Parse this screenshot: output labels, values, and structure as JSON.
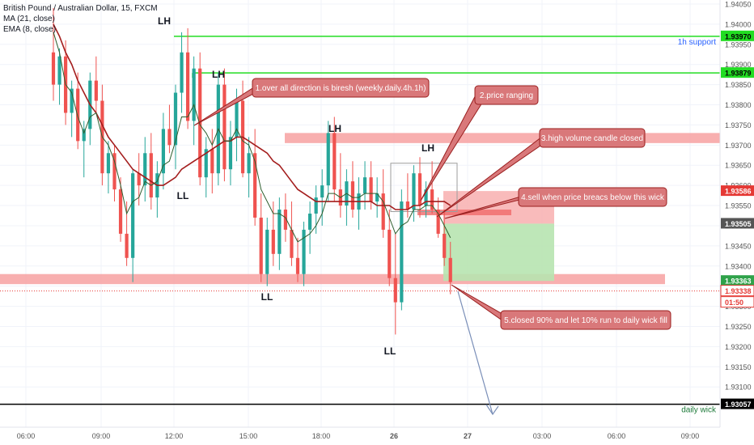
{
  "legend": {
    "symbol": "British Pound / Australian Dollar, 15, FXCM",
    "ma": "MA (21, close)",
    "ema": "EMA (8, close)"
  },
  "colors": {
    "up": "#26a69a",
    "down": "#ef5350",
    "ma": "#a31d1d",
    "ema": "#2e5e2e",
    "support_line": "#22dd22",
    "zone": "#f7a1a1",
    "note_fill": "#d9787a",
    "note_border": "#9a1f1f",
    "target_box": "#b7e4b0",
    "stop_box": "#f8b4b4",
    "arrow": "#7a8fb8"
  },
  "chart_data": {
    "type": "candlestick",
    "ylim": [
      1.93,
      1.9406
    ],
    "x_ticks": [
      "06:00",
      "09:00",
      "12:00",
      "15:00",
      "18:00",
      "26",
      "27",
      "03:00",
      "06:00",
      "09:00"
    ],
    "y_ticks": [
      "1.94050",
      "1.94000",
      "1.93950",
      "1.93900",
      "1.93850",
      "1.93800",
      "1.93750",
      "1.93700",
      "1.93650",
      "1.93600",
      "1.93550",
      "1.93500",
      "1.93450",
      "1.93400",
      "1.93350",
      "1.93300",
      "1.93250",
      "1.93200",
      "1.93150",
      "1.93100"
    ],
    "price_labels": [
      {
        "text": "1.93970",
        "value": 1.9397,
        "color": "#22dd22"
      },
      {
        "text": "1.93879",
        "value": 1.93879,
        "color": "#22dd22"
      },
      {
        "text": "1.93586",
        "value": 1.93586,
        "color": "#ffffff"
      },
      {
        "text": "1.93505",
        "value": 1.93505,
        "color": "#ffffff"
      },
      {
        "text": "1.93363",
        "value": 1.93363,
        "color": "#1e9e3a"
      },
      {
        "text": "1.93338",
        "value": 1.93338,
        "color": "#e53935"
      },
      {
        "text": "01:50",
        "value": 1.933,
        "color": "#e53935"
      },
      {
        "text": "1.93057",
        "value": 1.93057,
        "color": "#000000"
      }
    ],
    "levels": [
      {
        "label": "1h support",
        "value": 1.9397
      },
      {
        "label": "",
        "value": 1.93879
      },
      {
        "label": "daily wick",
        "value": 1.93057
      }
    ],
    "zones": [
      {
        "from": 1.93705,
        "to": 1.9373
      },
      {
        "from": 1.93355,
        "to": 1.9338
      }
    ],
    "swing_labels": [
      "LH",
      "LH",
      "LH",
      "LH",
      "LL",
      "LL",
      "LL"
    ],
    "candles": [
      [
        1.9393,
        1.9404,
        1.9381,
        1.9385
      ],
      [
        1.9385,
        1.9394,
        1.938,
        1.9392
      ],
      [
        1.9392,
        1.9396,
        1.9375,
        1.9378
      ],
      [
        1.9378,
        1.9386,
        1.9372,
        1.9384
      ],
      [
        1.9384,
        1.9388,
        1.9369,
        1.9371
      ],
      [
        1.9371,
        1.9376,
        1.9362,
        1.9374
      ],
      [
        1.9374,
        1.9388,
        1.937,
        1.9386
      ],
      [
        1.9386,
        1.9392,
        1.9378,
        1.9381
      ],
      [
        1.9381,
        1.9385,
        1.936,
        1.9363
      ],
      [
        1.9363,
        1.9371,
        1.9358,
        1.9368
      ],
      [
        1.9368,
        1.937,
        1.9356,
        1.9359
      ],
      [
        1.9359,
        1.9362,
        1.9346,
        1.9348
      ],
      [
        1.9348,
        1.9356,
        1.934,
        1.9342
      ],
      [
        1.9342,
        1.9364,
        1.9336,
        1.9363
      ],
      [
        1.9363,
        1.9368,
        1.9355,
        1.936
      ],
      [
        1.936,
        1.9372,
        1.9356,
        1.9368
      ],
      [
        1.9368,
        1.9373,
        1.9354,
        1.9357
      ],
      [
        1.9357,
        1.9366,
        1.9352,
        1.9363
      ],
      [
        1.9363,
        1.9378,
        1.9359,
        1.9374
      ],
      [
        1.9374,
        1.938,
        1.9368,
        1.937
      ],
      [
        1.937,
        1.9385,
        1.9364,
        1.9383
      ],
      [
        1.9383,
        1.9398,
        1.9378,
        1.9393
      ],
      [
        1.9393,
        1.9399,
        1.9374,
        1.9376
      ],
      [
        1.9376,
        1.9392,
        1.937,
        1.9389
      ],
      [
        1.9389,
        1.9393,
        1.936,
        1.9362
      ],
      [
        1.9362,
        1.9372,
        1.9357,
        1.9369
      ],
      [
        1.9369,
        1.9374,
        1.9358,
        1.9363
      ],
      [
        1.9363,
        1.9388,
        1.936,
        1.9385
      ],
      [
        1.9385,
        1.9389,
        1.9361,
        1.9364
      ],
      [
        1.9364,
        1.9376,
        1.936,
        1.9372
      ],
      [
        1.9372,
        1.9384,
        1.9366,
        1.9381
      ],
      [
        1.9381,
        1.9386,
        1.9362,
        1.9363
      ],
      [
        1.9363,
        1.9372,
        1.9357,
        1.9368
      ],
      [
        1.9368,
        1.9374,
        1.935,
        1.9352
      ],
      [
        1.9352,
        1.9358,
        1.9336,
        1.9338
      ],
      [
        1.9338,
        1.9352,
        1.9335,
        1.9349
      ],
      [
        1.9349,
        1.9356,
        1.934,
        1.9343
      ],
      [
        1.9343,
        1.9357,
        1.9339,
        1.9354
      ],
      [
        1.9354,
        1.9358,
        1.9346,
        1.9349
      ],
      [
        1.9349,
        1.9356,
        1.934,
        1.9342
      ],
      [
        1.9342,
        1.9347,
        1.9336,
        1.9338
      ],
      [
        1.9338,
        1.9351,
        1.9335,
        1.9349
      ],
      [
        1.9349,
        1.9356,
        1.9343,
        1.9353
      ],
      [
        1.9353,
        1.936,
        1.9348,
        1.9357
      ],
      [
        1.9357,
        1.9364,
        1.935,
        1.936
      ],
      [
        1.936,
        1.9376,
        1.9356,
        1.9373
      ],
      [
        1.9373,
        1.9377,
        1.9356,
        1.9359
      ],
      [
        1.9359,
        1.9368,
        1.9352,
        1.9355
      ],
      [
        1.9355,
        1.9364,
        1.935,
        1.9361
      ],
      [
        1.9361,
        1.9366,
        1.9352,
        1.9354
      ],
      [
        1.9354,
        1.9362,
        1.9349,
        1.9358
      ],
      [
        1.9358,
        1.9366,
        1.9354,
        1.9362
      ],
      [
        1.9362,
        1.9366,
        1.9354,
        1.9356
      ],
      [
        1.9356,
        1.9362,
        1.9352,
        1.9358
      ],
      [
        1.9358,
        1.9364,
        1.9347,
        1.9349
      ],
      [
        1.9349,
        1.9354,
        1.9335,
        1.9337
      ],
      [
        1.9337,
        1.9348,
        1.9323,
        1.9331
      ],
      [
        1.9331,
        1.9359,
        1.9329,
        1.9356
      ],
      [
        1.9356,
        1.9363,
        1.9352,
        1.9354
      ],
      [
        1.9354,
        1.9365,
        1.9351,
        1.9363
      ],
      [
        1.9363,
        1.9367,
        1.9352,
        1.9355
      ],
      [
        1.9355,
        1.9361,
        1.9352,
        1.9359
      ],
      [
        1.9359,
        1.9366,
        1.9353,
        1.9354
      ],
      [
        1.9354,
        1.9357,
        1.9347,
        1.9348
      ],
      [
        1.9348,
        1.9354,
        1.934,
        1.9342
      ],
      [
        1.9342,
        1.9346,
        1.9333,
        1.9336
      ]
    ],
    "ma": [
      1.94,
      1.9397,
      1.9393,
      1.939,
      1.9386,
      1.9383,
      1.938,
      1.9378,
      1.9375,
      1.9372,
      1.937,
      1.9368,
      1.9366,
      1.9364,
      1.9363,
      1.9362,
      1.9361,
      1.936,
      1.936,
      1.9361,
      1.9362,
      1.9364,
      1.9365,
      1.9366,
      1.9367,
      1.9368,
      1.9369,
      1.937,
      1.9371,
      1.9371,
      1.9372,
      1.9372,
      1.9371,
      1.937,
      1.9369,
      1.9368,
      1.9366,
      1.9365,
      1.9363,
      1.9361,
      1.9359,
      1.9358,
      1.9357,
      1.9356,
      1.9356,
      1.9356,
      1.9356,
      1.9356,
      1.9356,
      1.9356,
      1.9356,
      1.9356,
      1.9356,
      1.9355,
      1.9355,
      1.9355,
      1.9354,
      1.9354,
      1.9354,
      1.9355,
      1.9355,
      1.9356,
      1.9356,
      1.9356,
      1.9356,
      1.9355
    ],
    "ema": [
      1.9398,
      1.9393,
      1.9385,
      1.9383,
      1.9377,
      1.9373,
      1.9377,
      1.9378,
      1.9372,
      1.937,
      1.9366,
      1.936,
      1.9353,
      1.9356,
      1.9357,
      1.9361,
      1.936,
      1.9361,
      1.9365,
      1.9366,
      1.9371,
      1.9377,
      1.9377,
      1.938,
      1.9375,
      1.9373,
      1.937,
      1.9374,
      1.9371,
      1.9371,
      1.9374,
      1.9371,
      1.937,
      1.9366,
      1.9359,
      1.9356,
      1.9353,
      1.9353,
      1.9352,
      1.9349,
      1.9346,
      1.9347,
      1.9348,
      1.935,
      1.9353,
      1.9358,
      1.9358,
      1.9357,
      1.9358,
      1.9357,
      1.9357,
      1.9358,
      1.9358,
      1.9358,
      1.9356,
      1.9352,
      1.9348,
      1.935,
      1.9351,
      1.9354,
      1.9354,
      1.9355,
      1.9355,
      1.9353,
      1.935,
      1.9347
    ]
  },
  "annotations": [
    {
      "id": "note-1",
      "text": "1.over all direction is biresh (weekly.daily.4h.1h)"
    },
    {
      "id": "note-2",
      "text": "2.price ranging"
    },
    {
      "id": "note-3",
      "text": "3.high volume candle closed"
    },
    {
      "id": "note-4",
      "text": "4.sell when price breacs below this wick"
    },
    {
      "id": "note-5",
      "text": "5.closed 90% and let 10% run to daily wick fill"
    }
  ]
}
